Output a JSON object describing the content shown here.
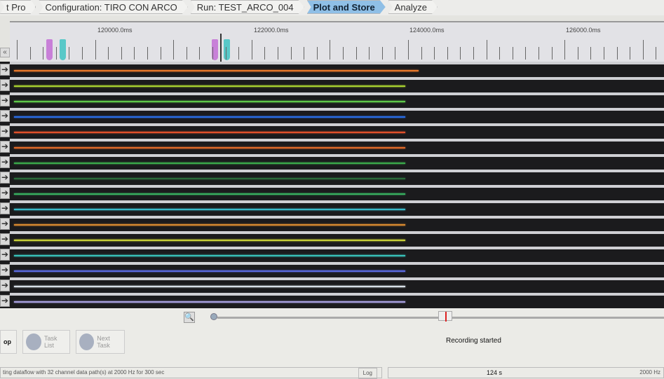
{
  "breadcrumbs": [
    {
      "label": "t Pro"
    },
    {
      "label": "Configuration: TIRO CON ARCO"
    },
    {
      "label": "Run: TEST_ARCO_004"
    },
    {
      "label": "Plot and Store",
      "active": true
    },
    {
      "label": "Analyze"
    }
  ],
  "ruler": {
    "labels": [
      "120000.0ms",
      "122000.0ms",
      "124000.0ms",
      "126000.0ms"
    ],
    "collapse": "«"
  },
  "channels": [
    {
      "color": "#e8782a",
      "end": 0.63
    },
    {
      "color": "#a8d030",
      "end": 0.61
    },
    {
      "color": "#5ec84a",
      "end": 0.61
    },
    {
      "color": "#2a6ee8",
      "end": 0.61
    },
    {
      "color": "#e0502a",
      "end": 0.61
    },
    {
      "color": "#e06a2a",
      "end": 0.61
    },
    {
      "color": "#3aa84a",
      "end": 0.61
    },
    {
      "color": "#2a6a3a",
      "end": 0.61
    },
    {
      "color": "#38b060",
      "end": 0.61
    },
    {
      "color": "#38b8c8",
      "end": 0.61
    },
    {
      "color": "#d88a30",
      "end": 0.61
    },
    {
      "color": "#c8d038",
      "end": 0.61
    },
    {
      "color": "#38c0b8",
      "end": 0.61
    },
    {
      "color": "#5a6ae0",
      "end": 0.61
    },
    {
      "color": "#d8e0e8",
      "end": 0.61
    },
    {
      "color": "#a8a0e0",
      "end": 0.61
    }
  ],
  "arrow_icon": "➔",
  "controls": {
    "stop_label": "op",
    "task_list": "Task List",
    "next_task": "Next Task",
    "status": "Recording started",
    "log_text": "ting dataflow with 32 channel data path(s) at 2000 Hz for 300 sec",
    "log_button": "Log",
    "elapsed": "124 s",
    "rate": "2000 Hz"
  },
  "timeline_position": 0.52
}
